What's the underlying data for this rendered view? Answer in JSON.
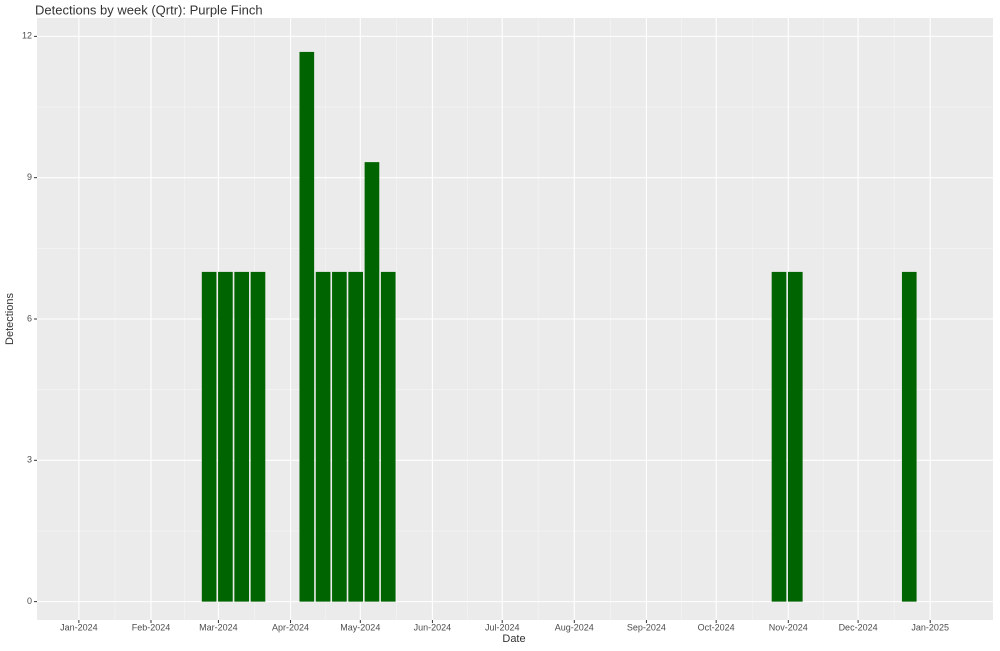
{
  "chart_data": {
    "type": "bar",
    "title": "Detections by week (Qrtr): Purple Finch",
    "x_label": "Date",
    "y_label": "Detections",
    "x": [
      "2024-02-26",
      "2024-03-04",
      "2024-03-11",
      "2024-03-18",
      "2024-04-08",
      "2024-04-15",
      "2024-04-22",
      "2024-04-29",
      "2024-05-06",
      "2024-05-13",
      "2024-10-28",
      "2024-11-04",
      "2024-12-23"
    ],
    "values": [
      7,
      7,
      7,
      7,
      11.67,
      7,
      7,
      7,
      9.33,
      7,
      7,
      7,
      7
    ],
    "color": "#006400",
    "xlim": [
      "2023-12-14",
      "2025-01-28"
    ],
    "xticks": [
      {
        "value": "2024-01-01",
        "label": "Jan-2024"
      },
      {
        "value": "2024-02-01",
        "label": "Feb-2024"
      },
      {
        "value": "2024-03-01",
        "label": "Mar-2024"
      },
      {
        "value": "2024-04-01",
        "label": "Apr-2024"
      },
      {
        "value": "2024-05-01",
        "label": "May-2024"
      },
      {
        "value": "2024-06-01",
        "label": "Jun-2024"
      },
      {
        "value": "2024-07-01",
        "label": "Jul-2024"
      },
      {
        "value": "2024-08-01",
        "label": "Aug-2024"
      },
      {
        "value": "2024-09-01",
        "label": "Sep-2024"
      },
      {
        "value": "2024-10-01",
        "label": "Oct-2024"
      },
      {
        "value": "2024-11-01",
        "label": "Nov-2024"
      },
      {
        "value": "2024-12-01",
        "label": "Dec-2024"
      },
      {
        "value": "2025-01-01",
        "label": "Jan-2025"
      }
    ],
    "ylim": [
      -0.39,
      12.39
    ],
    "yticks": [
      0,
      3,
      6,
      9,
      12
    ],
    "grid": true
  }
}
